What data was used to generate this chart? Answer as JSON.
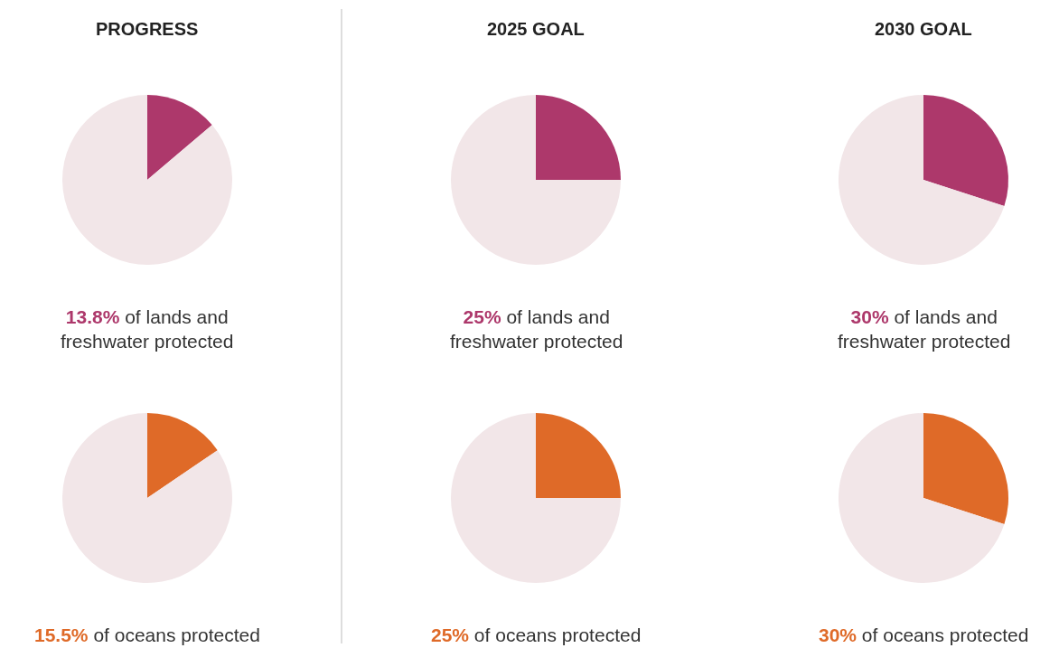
{
  "chart_data": [
    {
      "type": "pie",
      "title": "PROGRESS",
      "categories": [
        null,
        null
      ],
      "values": [
        13.8,
        86.2
      ],
      "colors": [
        "#ad386b",
        "#f2e6e8"
      ],
      "annotations": [
        "13.8% of lands and\nfreshwater protected"
      ]
    },
    {
      "type": "pie",
      "title": "2025 GOAL",
      "categories": [
        null,
        null
      ],
      "values": [
        25,
        75
      ],
      "colors": [
        "#ad386b",
        "#f2e6e8"
      ],
      "annotations": [
        "25% of lands and\nfreshwater protected"
      ]
    },
    {
      "type": "pie",
      "title": "2030 GOAL",
      "categories": [
        null,
        null
      ],
      "values": [
        30,
        70
      ],
      "colors": [
        "#ad386b",
        "#f2e6e8"
      ],
      "annotations": [
        "30% of lands and\nfreshwater protected"
      ]
    },
    {
      "type": "pie",
      "categories": [
        null,
        null
      ],
      "values": [
        15.5,
        84.5
      ],
      "colors": [
        "#df6a28",
        "#f2e6e8"
      ],
      "annotations": [
        "15.5% of oceans protected"
      ]
    },
    {
      "type": "pie",
      "categories": [
        null,
        null
      ],
      "values": [
        25,
        75
      ],
      "colors": [
        "#df6a28",
        "#f2e6e8"
      ],
      "annotations": [
        "25% of oceans protected"
      ]
    },
    {
      "type": "pie",
      "categories": [
        null,
        null
      ],
      "values": [
        30,
        70
      ],
      "colors": [
        "#df6a28",
        "#f2e6e8"
      ],
      "annotations": [
        "30% of oceans protected"
      ]
    }
  ]
}
